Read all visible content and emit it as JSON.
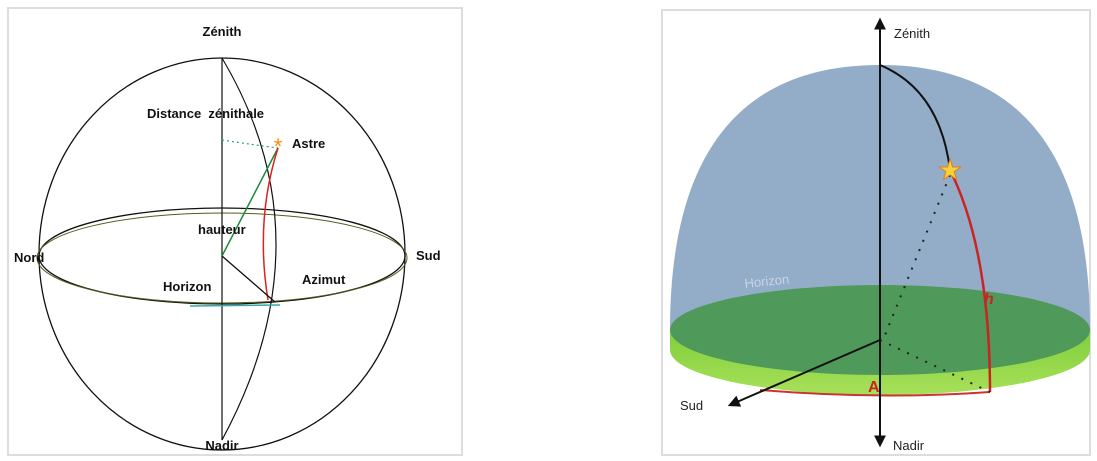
{
  "left_diagram": {
    "zenith": "Zénith",
    "zenith_distance": "Distance  zénithale",
    "star": "Astre",
    "altitude": "hauteur",
    "north": "Nord",
    "south": "Sud",
    "horizon": "Horizon",
    "azimuth": "Azimut",
    "nadir": "Nadir"
  },
  "right_diagram": {
    "zenith": "Zénith",
    "horizon": "Horizon",
    "altitude": "h",
    "south": "Sud",
    "azimuth": "A",
    "nadir": "Nadir"
  }
}
